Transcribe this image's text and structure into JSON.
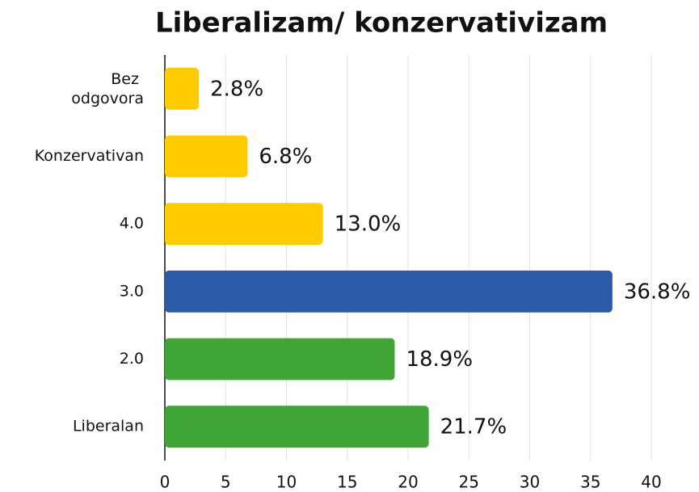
{
  "chart_data": {
    "type": "barh",
    "title": "Liberalizam/ konzervativizam",
    "categories": [
      "Bez odgovora",
      "Konzervativan",
      "4.0",
      "3.0",
      "2.0",
      "Liberalan"
    ],
    "values": [
      2.8,
      6.8,
      13.0,
      36.8,
      18.9,
      21.7
    ],
    "value_labels": [
      "2.8%",
      "6.8%",
      "13.0%",
      "36.8%",
      "18.9%",
      "21.7%"
    ],
    "colors": [
      "#ffcc00",
      "#ffcc00",
      "#ffcc00",
      "#2a5aa8",
      "#3fa535",
      "#3fa535"
    ],
    "xlim": [
      0,
      40
    ],
    "xticks": [
      0,
      5,
      10,
      15,
      20,
      25,
      30,
      35,
      40
    ],
    "grid": true
  }
}
